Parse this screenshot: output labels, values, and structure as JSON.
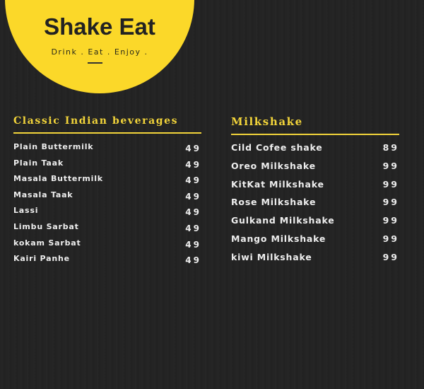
{
  "brand": {
    "title": "Shake Eat",
    "tagline": "Drink .  Eat . Enjoy .",
    "accent_color": "#fbd829"
  },
  "sections": [
    {
      "title": "Classic Indian beverages",
      "items": [
        {
          "name": "Plain Buttermilk",
          "price": "49"
        },
        {
          "name": "Plain Taak",
          "price": "49"
        },
        {
          "name": "Masala Buttermilk",
          "price": "49"
        },
        {
          "name": "Masala Taak",
          "price": "49"
        },
        {
          "name": "Lassi",
          "price": "49"
        },
        {
          "name": "Limbu Sarbat",
          "price": "49"
        },
        {
          "name": "kokam Sarbat",
          "price": "49"
        },
        {
          "name": "Kairi Panhe",
          "price": "49"
        }
      ]
    },
    {
      "title": "Milkshake",
      "items": [
        {
          "name": "Cild Cofee shake",
          "price": "89"
        },
        {
          "name": "Oreo Milkshake",
          "price": "99"
        },
        {
          "name": "KitKat Milkshake",
          "price": "99"
        },
        {
          "name": "Rose Milkshake",
          "price": "99"
        },
        {
          "name": "Gulkand Milkshake",
          "price": "99"
        },
        {
          "name": "Mango Milkshake",
          "price": "99"
        },
        {
          "name": "kiwi Milkshake",
          "price": "99"
        }
      ]
    }
  ]
}
